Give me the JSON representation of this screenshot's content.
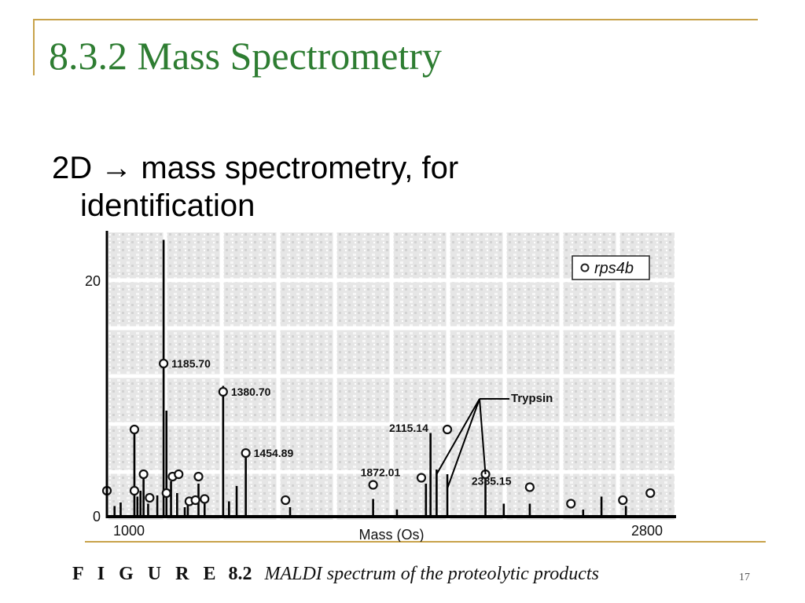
{
  "slide": {
    "title": "8.3.2 Mass Spectrometry",
    "bullet_line1": "2D → mass spectrometry, for",
    "bullet_line2": "identification",
    "caption_figure": "F I G U R E",
    "caption_number": "8.2",
    "caption_text": "MALDI spectrum of the proteolytic products",
    "page_number": "17"
  },
  "chart_data": {
    "type": "bar",
    "xlabel": "Mass (Os)",
    "ylabel": "",
    "xlim": [
      1000,
      2800
    ],
    "ylim": [
      0,
      24
    ],
    "x_ticks": [
      "1000",
      "2800"
    ],
    "y_ticks": [
      "0",
      "20"
    ],
    "legend": {
      "label": "rps4b",
      "position": "top-right"
    },
    "annotation_label": "Trypsin",
    "peaks": [
      {
        "x": 1000,
        "y": 1.6
      },
      {
        "x": 1025,
        "y": 0.9
      },
      {
        "x": 1045,
        "y": 1.2
      },
      {
        "x": 1090,
        "y": 7.0
      },
      {
        "x": 1100,
        "y": 1.7
      },
      {
        "x": 1110,
        "y": 2.2
      },
      {
        "x": 1120,
        "y": 3.6
      },
      {
        "x": 1135,
        "y": 1.1
      },
      {
        "x": 1165,
        "y": 1.8
      },
      {
        "x": 1185.7,
        "y": 23.5
      },
      {
        "x": 1195,
        "y": 9.0
      },
      {
        "x": 1210,
        "y": 3.0
      },
      {
        "x": 1230,
        "y": 2.0
      },
      {
        "x": 1255,
        "y": 0.8
      },
      {
        "x": 1265,
        "y": 1.2
      },
      {
        "x": 1300,
        "y": 2.8
      },
      {
        "x": 1320,
        "y": 1.5
      },
      {
        "x": 1380.7,
        "y": 11.1
      },
      {
        "x": 1400,
        "y": 1.3
      },
      {
        "x": 1425,
        "y": 2.6
      },
      {
        "x": 1454.89,
        "y": 5.6
      },
      {
        "x": 1600,
        "y": 0.8
      },
      {
        "x": 1872.01,
        "y": 1.5
      },
      {
        "x": 1950,
        "y": 0.6
      },
      {
        "x": 2045,
        "y": 2.8
      },
      {
        "x": 2060,
        "y": 7.1
      },
      {
        "x": 2080,
        "y": 4.0
      },
      {
        "x": 2115.14,
        "y": 3.6
      },
      {
        "x": 2240,
        "y": 3.6
      },
      {
        "x": 2300,
        "y": 1.1
      },
      {
        "x": 2385.15,
        "y": 1.1
      },
      {
        "x": 2560,
        "y": 0.6
      },
      {
        "x": 2620,
        "y": 1.7
      },
      {
        "x": 2700,
        "y": 0.9
      }
    ],
    "markers": [
      {
        "x": 1000,
        "y": 2.2,
        "label": ""
      },
      {
        "x": 1090,
        "y": 7.4,
        "label": ""
      },
      {
        "x": 1090,
        "y": 2.2,
        "label": ""
      },
      {
        "x": 1120,
        "y": 3.6,
        "label": ""
      },
      {
        "x": 1140,
        "y": 1.6,
        "label": ""
      },
      {
        "x": 1195,
        "y": 2.0,
        "label": ""
      },
      {
        "x": 1215,
        "y": 3.4,
        "label": ""
      },
      {
        "x": 1235,
        "y": 3.6,
        "label": ""
      },
      {
        "x": 1270,
        "y": 1.3,
        "label": ""
      },
      {
        "x": 1290,
        "y": 1.4,
        "label": ""
      },
      {
        "x": 1300,
        "y": 3.4,
        "label": ""
      },
      {
        "x": 1320,
        "y": 1.5,
        "label": ""
      },
      {
        "x": 1185.7,
        "y": 13.0,
        "label": "1185.70"
      },
      {
        "x": 1380.7,
        "y": 10.6,
        "label": "1380.70"
      },
      {
        "x": 1454.89,
        "y": 5.4,
        "label": "1454.89"
      },
      {
        "x": 1585,
        "y": 1.4,
        "label": ""
      },
      {
        "x": 1872.01,
        "y": 2.7,
        "label": "1872.01"
      },
      {
        "x": 2115.14,
        "y": 7.4,
        "label": "2115.14"
      },
      {
        "x": 2030,
        "y": 3.3,
        "label": ""
      },
      {
        "x": 2240,
        "y": 3.6,
        "label": ""
      },
      {
        "x": 2385.15,
        "y": 2.5,
        "label": "2385.15"
      },
      {
        "x": 2520,
        "y": 1.1,
        "label": ""
      },
      {
        "x": 2690,
        "y": 1.4,
        "label": ""
      },
      {
        "x": 2780,
        "y": 2.0,
        "label": ""
      }
    ]
  }
}
